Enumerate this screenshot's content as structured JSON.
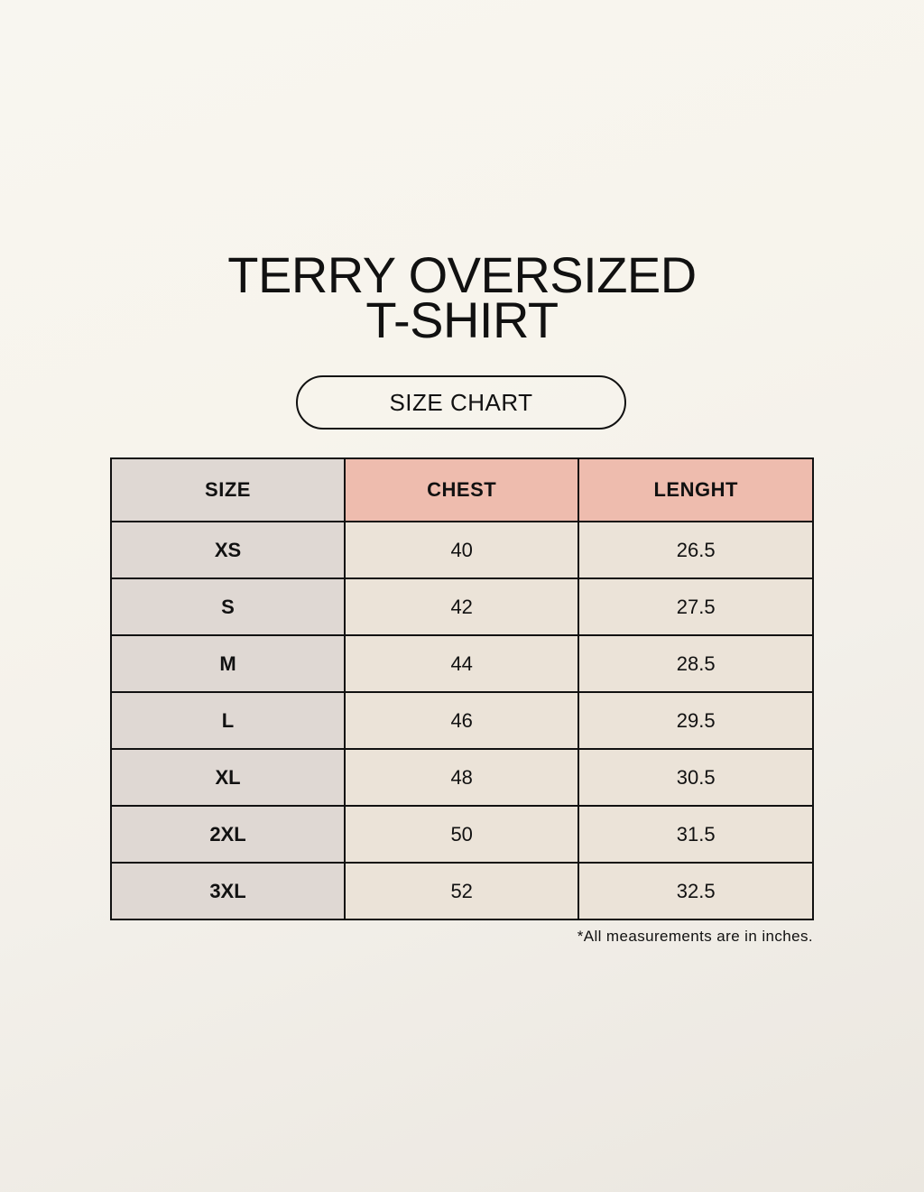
{
  "title": {
    "line1": "TERRY OVERSIZED",
    "line2": "T-SHIRT"
  },
  "subtitle": "SIZE CHART",
  "table": {
    "headers": [
      "SIZE",
      "CHEST",
      "LENGHT"
    ],
    "rows": [
      [
        "XS",
        "40",
        "26.5"
      ],
      [
        "S",
        "42",
        "27.5"
      ],
      [
        "M",
        "44",
        "28.5"
      ],
      [
        "L",
        "46",
        "29.5"
      ],
      [
        "XL",
        "48",
        "30.5"
      ],
      [
        "2XL",
        "50",
        "31.5"
      ],
      [
        "3XL",
        "52",
        "32.5"
      ]
    ]
  },
  "note": "*All measurements are in inches.",
  "colors": {
    "size_column": "#dfd8d3",
    "header_accent": "#eebcae",
    "value_cells": "#ebe3d8"
  }
}
